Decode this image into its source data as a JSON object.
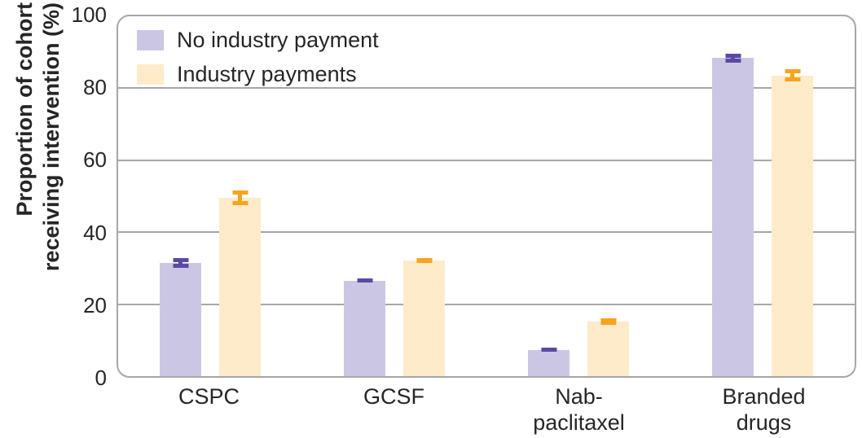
{
  "figure": {
    "y_axis_title_line1": "Proportion of cohort",
    "y_axis_title_line2": "receiving intervention (%)"
  },
  "chart_data": {
    "type": "bar",
    "title": "",
    "ylabel": "Proportion of cohort receiving intervention (%)",
    "xlabel": "",
    "ylim": [
      0,
      100
    ],
    "yticks": [
      0,
      20,
      40,
      60,
      80,
      100
    ],
    "grid": "horizontal gridlines at 20, 40, 60, 80; rounded rectangular frame",
    "legend_position": "top-left inside plot",
    "categories": [
      "CSPC",
      "GCSF",
      "Nab-paclitaxel",
      "Branded drugs"
    ],
    "category_label_lines": [
      [
        "CSPC"
      ],
      [
        "GCSF"
      ],
      [
        "Nab-",
        "paclitaxel"
      ],
      [
        "Branded",
        "drugs"
      ]
    ],
    "series": [
      {
        "name": "No industry payment",
        "bar_color": "#ccc6e5",
        "error_bar_color": "#5c49a4",
        "values": [
          31.5,
          26.5,
          7.2,
          88.4
        ],
        "error_margins": [
          1.3,
          0.5,
          0.4,
          1.2
        ]
      },
      {
        "name": "Industry payments",
        "bar_color": "#fdebca",
        "error_bar_color": "#f7a41d",
        "values": [
          49.6,
          32.1,
          15.1,
          83.6
        ],
        "error_margins": [
          2.0,
          0.6,
          0.9,
          1.6
        ]
      }
    ],
    "axis_color": "#a7a7a7",
    "text_color": "#262626"
  }
}
